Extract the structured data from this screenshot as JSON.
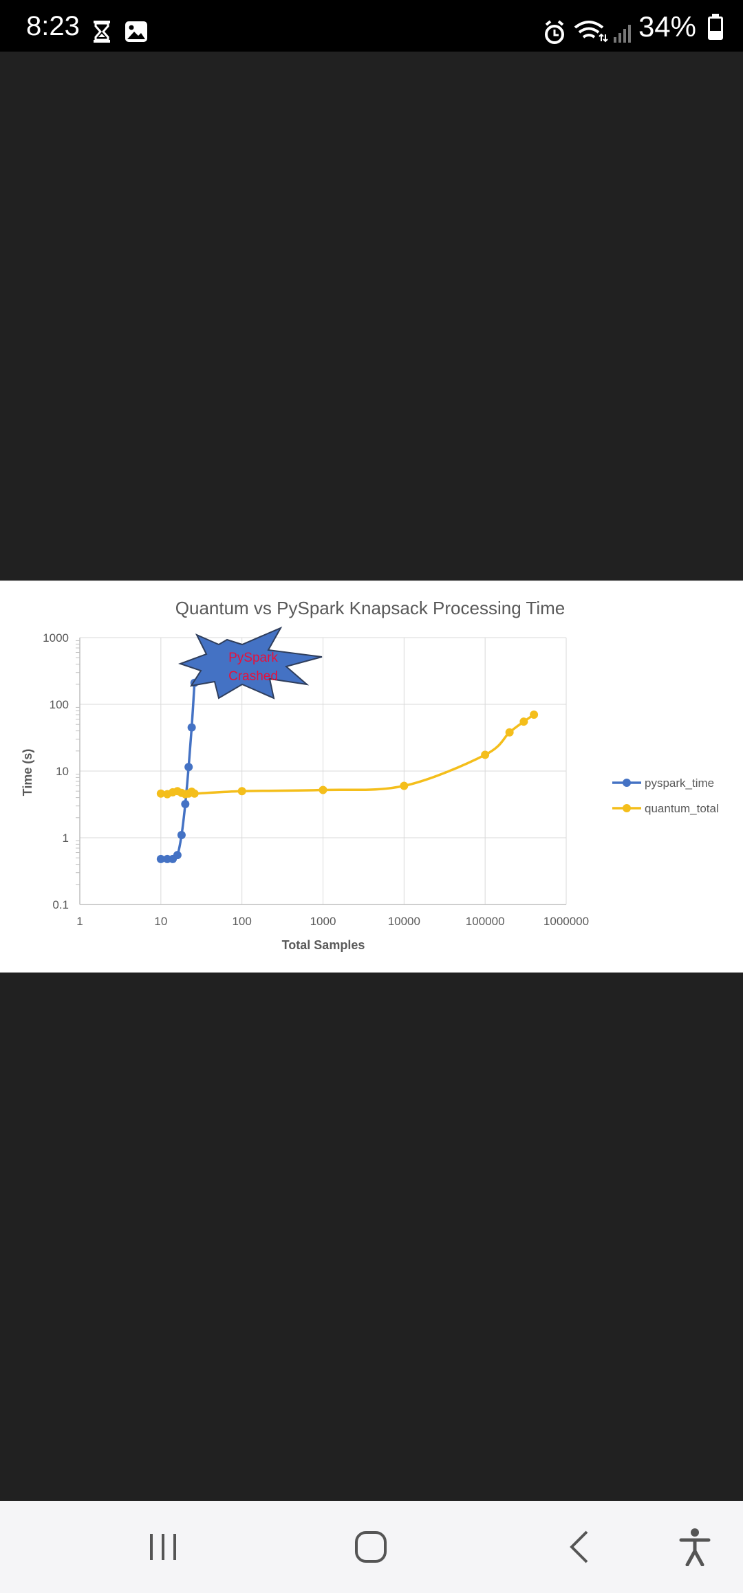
{
  "status_bar": {
    "time": "8:23",
    "battery": "34%",
    "icons": [
      "hourglass-icon",
      "image-icon",
      "alarm-icon",
      "wifi-icon",
      "signal-icon",
      "battery-icon"
    ]
  },
  "colors": {
    "pyspark": "#4472C4",
    "quantum": "#F4BE1B",
    "annotation_fill": "#4472C4",
    "annotation_text": "#E8103A"
  },
  "chart_data": {
    "type": "line",
    "title": "Quantum vs PySpark Knapsack Processing Time",
    "xlabel": "Total Samples",
    "ylabel": "Time (s)",
    "xscale": "log",
    "yscale": "log",
    "xlim": [
      1,
      1000000
    ],
    "ylim": [
      0.1,
      1000
    ],
    "x_ticks": [
      "1",
      "10",
      "100",
      "1000",
      "10000",
      "100000",
      "1000000"
    ],
    "y_ticks": [
      "0.1",
      "1",
      "10",
      "100",
      "1000"
    ],
    "grid": true,
    "legend_position": "right",
    "annotation": {
      "line1": "PySpark",
      "line2": "Crashed"
    },
    "series": [
      {
        "name": "pyspark_time",
        "x": [
          10,
          12,
          14,
          16,
          18,
          20,
          22,
          24,
          26
        ],
        "y": [
          0.48,
          0.48,
          0.48,
          0.55,
          1.1,
          3.2,
          11.5,
          45,
          210
        ]
      },
      {
        "name": "quantum_total",
        "x": [
          10,
          12,
          14,
          16,
          18,
          20,
          22,
          24,
          26,
          100,
          1000,
          10000,
          100000,
          200000,
          300000,
          400000
        ],
        "y": [
          4.6,
          4.5,
          4.8,
          5.0,
          4.7,
          4.5,
          4.6,
          4.9,
          4.6,
          5.0,
          5.2,
          6.0,
          17.5,
          38,
          55,
          70
        ]
      }
    ]
  }
}
